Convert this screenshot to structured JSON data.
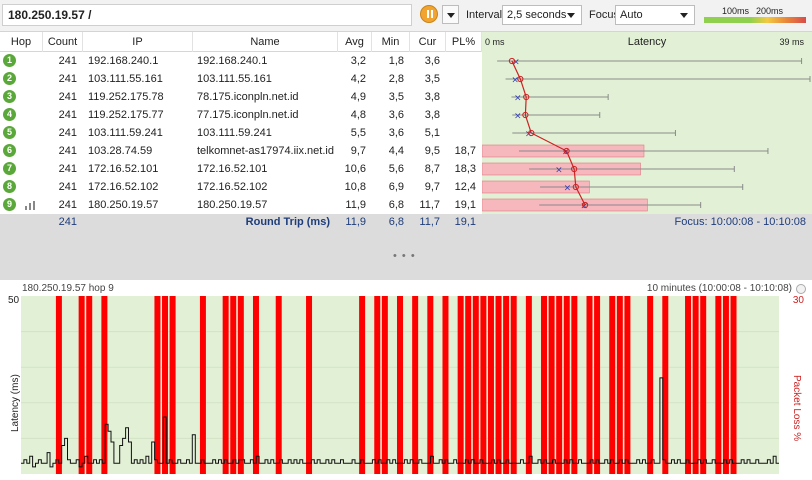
{
  "toolbar": {
    "target": "180.250.19.57 /",
    "interval_label": "Interval",
    "interval_value": "2,5 seconds",
    "focus_label": "Focus",
    "focus_value": "Auto",
    "scale_100": "100ms",
    "scale_200": "200ms"
  },
  "columns": {
    "hop": "Hop",
    "count": "Count",
    "ip": "IP",
    "name": "Name",
    "avg": "Avg",
    "min": "Min",
    "cur": "Cur",
    "pl": "PL%",
    "latency": "Latency",
    "lat_min": "0 ms",
    "lat_max": "39 ms"
  },
  "hops": [
    {
      "hop": "1",
      "count": "241",
      "ip": "192.168.240.1",
      "name": "192.168.240.1",
      "avg": "3,2",
      "min": "1,8",
      "cur": "3,6",
      "pl": "",
      "graph": {
        "min": 1.8,
        "avg": 3.2,
        "cur": 3.6,
        "max": 38.0,
        "pl": 0
      }
    },
    {
      "hop": "2",
      "count": "241",
      "ip": "103.111.55.161",
      "name": "103.111.55.161",
      "avg": "4,2",
      "min": "2,8",
      "cur": "3,5",
      "pl": "",
      "graph": {
        "min": 2.8,
        "avg": 4.2,
        "cur": 3.5,
        "max": 39.0,
        "pl": 0
      }
    },
    {
      "hop": "3",
      "count": "241",
      "ip": "119.252.175.78",
      "name": "78.175.iconpln.net.id",
      "avg": "4,9",
      "min": "3,5",
      "cur": "3,8",
      "pl": "",
      "graph": {
        "min": 3.5,
        "avg": 4.9,
        "cur": 3.8,
        "max": 15.0,
        "pl": 0
      }
    },
    {
      "hop": "4",
      "count": "241",
      "ip": "119.252.175.77",
      "name": "77.175.iconpln.net.id",
      "avg": "4,8",
      "min": "3,6",
      "cur": "3,8",
      "pl": "",
      "graph": {
        "min": 3.6,
        "avg": 4.8,
        "cur": 3.8,
        "max": 14.0,
        "pl": 0
      }
    },
    {
      "hop": "5",
      "count": "241",
      "ip": "103.111.59.241",
      "name": "103.111.59.241",
      "avg": "5,5",
      "min": "3,6",
      "cur": "5,1",
      "pl": "",
      "graph": {
        "min": 3.6,
        "avg": 5.5,
        "cur": 5.1,
        "max": 23.0,
        "pl": 0
      }
    },
    {
      "hop": "6",
      "count": "241",
      "ip": "103.28.74.59",
      "name": "telkomnet-as17974.iix.net.id",
      "avg": "9,7",
      "min": "4,4",
      "cur": "9,5",
      "pl": "18,7",
      "graph": {
        "min": 4.4,
        "avg": 9.7,
        "cur": 9.5,
        "max": 34.0,
        "pl": 18.7
      }
    },
    {
      "hop": "7",
      "count": "241",
      "ip": "172.16.52.101",
      "name": "172.16.52.101",
      "avg": "10,6",
      "min": "5,6",
      "cur": "8,7",
      "pl": "18,3",
      "graph": {
        "min": 5.6,
        "avg": 10.6,
        "cur": 8.7,
        "max": 30.0,
        "pl": 18.3
      }
    },
    {
      "hop": "8",
      "count": "241",
      "ip": "172.16.52.102",
      "name": "172.16.52.102",
      "avg": "10,8",
      "min": "6,9",
      "cur": "9,7",
      "pl": "12,4",
      "graph": {
        "min": 6.9,
        "avg": 10.8,
        "cur": 9.7,
        "max": 31.0,
        "pl": 12.4
      }
    },
    {
      "hop": "9",
      "count": "241",
      "ip": "180.250.19.57",
      "name": "180.250.19.57",
      "avg": "11,9",
      "min": "6,8",
      "cur": "11,7",
      "pl": "19,1",
      "graph": {
        "min": 6.8,
        "avg": 11.9,
        "cur": 11.7,
        "max": 26.0,
        "pl": 19.1
      }
    }
  ],
  "summary": {
    "count": "241",
    "label": "Round Trip (ms)",
    "avg": "11,9",
    "min": "6,8",
    "cur": "11,7",
    "pl": "19,1",
    "focus_text": "Focus: 10:00:08 - 10:10:08"
  },
  "divider_dots": "• • •",
  "lower_chart": {
    "title": "180.250.19.57 hop 9",
    "range": "10 minutes (10:00:08 - 10:10:08)",
    "y_left_max": "50",
    "y_right_max": "30",
    "y_left_label": "Latency (ms)",
    "y_right_label": "Packet Loss %"
  },
  "chart_data": {
    "type": "line",
    "title": "180.250.19.57 hop 9",
    "ylabel": "Latency (ms)",
    "y2label": "Packet Loss %",
    "ylim": [
      0,
      50
    ],
    "y2lim": [
      0,
      30
    ],
    "latency": [
      3,
      4,
      3,
      5,
      2,
      3,
      4,
      3,
      3,
      6,
      2,
      3,
      4,
      3,
      8,
      10,
      4,
      3,
      3,
      4,
      2,
      3,
      5,
      3,
      3,
      4,
      3,
      4,
      3,
      14,
      12,
      9,
      3,
      3,
      8,
      10,
      13,
      9,
      3,
      4,
      3,
      4,
      3,
      5,
      3,
      9,
      4,
      3,
      3,
      16,
      3,
      4,
      3,
      3,
      4,
      3,
      3,
      4,
      3,
      11,
      3,
      3,
      4,
      3,
      3,
      3,
      4,
      3,
      4,
      3,
      4,
      3,
      3,
      4,
      3,
      4,
      4,
      3,
      3,
      4,
      3,
      5,
      3,
      3,
      4,
      3,
      4,
      3,
      3,
      4,
      3,
      3,
      4,
      3,
      4,
      3,
      4,
      3,
      3,
      3,
      4,
      3,
      4,
      3,
      3,
      4,
      3,
      4,
      3,
      3,
      4,
      3,
      3,
      3,
      4,
      3,
      3,
      4,
      3,
      3,
      3,
      4,
      3,
      4,
      3,
      3,
      4,
      3,
      4,
      3,
      3,
      3,
      4,
      3,
      4,
      3,
      3,
      4,
      3,
      3,
      3,
      5,
      3,
      3,
      4,
      3,
      4,
      3,
      3,
      4,
      3,
      3,
      3,
      4,
      3,
      4,
      3,
      3,
      4,
      3,
      3,
      3,
      4,
      3,
      4,
      3,
      3,
      4,
      3,
      3,
      3,
      3,
      4,
      3,
      3,
      5,
      3,
      3,
      4,
      3,
      4,
      3,
      3,
      4,
      3,
      3,
      3,
      4,
      3,
      4,
      3,
      3,
      4,
      3,
      3,
      3,
      4,
      3,
      4,
      3,
      3,
      4,
      3,
      4,
      3,
      3,
      4,
      3,
      4,
      3,
      3,
      3,
      4,
      3,
      4,
      3,
      3,
      4,
      3,
      3,
      27,
      4,
      3,
      3,
      4,
      3,
      4,
      3,
      3,
      4,
      3,
      3,
      3,
      4,
      3,
      4,
      3,
      3,
      4,
      3,
      3,
      3,
      4,
      3,
      4,
      3,
      3,
      3,
      4,
      3,
      4,
      3,
      3,
      4,
      3,
      3,
      3,
      4,
      3,
      5,
      3,
      3
    ],
    "loss_bars": [
      0.05,
      0.08,
      0.09,
      0.11,
      0.18,
      0.19,
      0.2,
      0.24,
      0.27,
      0.28,
      0.29,
      0.31,
      0.34,
      0.38,
      0.45,
      0.47,
      0.48,
      0.5,
      0.52,
      0.54,
      0.56,
      0.58,
      0.59,
      0.6,
      0.61,
      0.62,
      0.63,
      0.64,
      0.65,
      0.67,
      0.69,
      0.7,
      0.71,
      0.72,
      0.73,
      0.75,
      0.76,
      0.78,
      0.79,
      0.8,
      0.83,
      0.85,
      0.88,
      0.89,
      0.9,
      0.92,
      0.93,
      0.94
    ]
  },
  "colors": {
    "graph_bg": "#e2f1d6",
    "loss_bar": "#ff0000",
    "pl_fill": "#f6b7bd",
    "line": "#cc2222",
    "hop_green": "#5aa83a"
  }
}
